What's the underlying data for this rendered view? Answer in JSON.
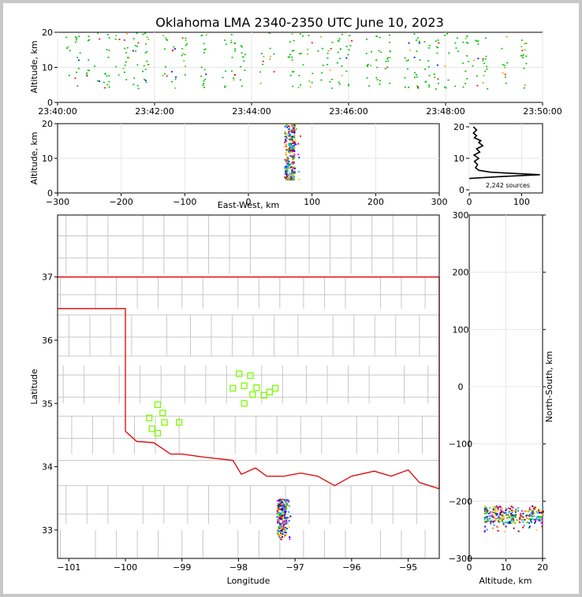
{
  "title": "Oklahoma LMA 2340-2350 UTC June 10, 2023",
  "colors": {
    "state_boundary": "#e00000",
    "county_lines": "#c8c8c8",
    "stations": "#7cfc00",
    "profile": "#000000"
  },
  "chart_data": [
    {
      "id": "time-height",
      "type": "scatter",
      "ylabel": "Altitude, km",
      "xlim": [
        "23:40:00",
        "23:50:00"
      ],
      "ylim": [
        0,
        20
      ],
      "xticks": [
        "23:40:00",
        "23:42:00",
        "23:44:00",
        "23:46:00",
        "23:48:00",
        "23:50:00"
      ],
      "yticks": [
        "0",
        "10",
        "20"
      ],
      "columns_minutes": [
        0.2,
        0.4,
        0.6,
        0.8,
        1.0,
        1.2,
        1.4,
        1.6,
        1.8,
        2.2,
        2.4,
        2.6,
        3.0,
        3.4,
        3.6,
        3.8,
        4.2,
        4.4,
        4.8,
        5.0,
        5.2,
        5.4,
        5.6,
        5.8,
        6.0,
        6.4,
        6.6,
        6.8,
        7.2,
        7.4,
        7.6,
        7.8,
        8.0,
        8.2,
        8.4,
        8.6,
        8.8,
        9.2,
        9.6
      ],
      "altitude_range_km": [
        4,
        20
      ]
    },
    {
      "id": "ew-altitude",
      "type": "heatmap",
      "xlabel": "East-West, km",
      "ylabel": "Altitude, km",
      "xlim": [
        -300,
        300
      ],
      "ylim": [
        0,
        20
      ],
      "xticks": [
        "−300",
        "−200",
        "−100",
        "0",
        "100",
        "200",
        "300"
      ],
      "yticks": [
        "0",
        "10",
        "20"
      ],
      "cluster": {
        "x_range_km": [
          55,
          80
        ],
        "altitude_range_km": [
          4,
          20
        ]
      }
    },
    {
      "id": "altitude-histogram",
      "type": "line",
      "xlim": [
        0,
        140
      ],
      "ylim": [
        0,
        20
      ],
      "xticks": [
        "0",
        "100"
      ],
      "yticks": [
        "0",
        "10",
        "20"
      ],
      "annotation": "2,242 sources",
      "profile": [
        {
          "count": 0,
          "alt": 3.6
        },
        {
          "count": 60,
          "alt": 4.2
        },
        {
          "count": 135,
          "alt": 4.8
        },
        {
          "count": 85,
          "alt": 5.2
        },
        {
          "count": 40,
          "alt": 5.6
        },
        {
          "count": 18,
          "alt": 6.2
        },
        {
          "count": 12,
          "alt": 7.0
        },
        {
          "count": 16,
          "alt": 8.0
        },
        {
          "count": 10,
          "alt": 9.0
        },
        {
          "count": 18,
          "alt": 10.0
        },
        {
          "count": 9,
          "alt": 11.0
        },
        {
          "count": 20,
          "alt": 12.0
        },
        {
          "count": 14,
          "alt": 13.0
        },
        {
          "count": 26,
          "alt": 14.0
        },
        {
          "count": 18,
          "alt": 15.0
        },
        {
          "count": 22,
          "alt": 15.6
        },
        {
          "count": 10,
          "alt": 16.5
        },
        {
          "count": 14,
          "alt": 17.2
        },
        {
          "count": 8,
          "alt": 18.0
        },
        {
          "count": 14,
          "alt": 19.0
        },
        {
          "count": 8,
          "alt": 20.0
        }
      ]
    },
    {
      "id": "plan-view",
      "type": "scatter",
      "xlabel": "Longitude",
      "ylabel": "Latitude",
      "xlim": [
        -101.2,
        -94.45
      ],
      "ylim": [
        32.55,
        37.98
      ],
      "xticks": [
        "−101",
        "−100",
        "−99",
        "−98",
        "−97",
        "−96",
        "−95"
      ],
      "yticks": [
        "33",
        "34",
        "35",
        "36",
        "37"
      ],
      "stations": [
        {
          "lon": -99.43,
          "lat": 34.98
        },
        {
          "lon": -99.34,
          "lat": 34.85
        },
        {
          "lon": -99.58,
          "lat": 34.77
        },
        {
          "lon": -99.31,
          "lat": 34.7
        },
        {
          "lon": -99.05,
          "lat": 34.7
        },
        {
          "lon": -99.53,
          "lat": 34.6
        },
        {
          "lon": -99.43,
          "lat": 34.53
        },
        {
          "lon": -97.99,
          "lat": 35.47
        },
        {
          "lon": -97.79,
          "lat": 35.44
        },
        {
          "lon": -98.1,
          "lat": 35.24
        },
        {
          "lon": -97.9,
          "lat": 35.28
        },
        {
          "lon": -97.68,
          "lat": 35.25
        },
        {
          "lon": -97.35,
          "lat": 35.24
        },
        {
          "lon": -97.45,
          "lat": 35.18
        },
        {
          "lon": -97.75,
          "lat": 35.14
        },
        {
          "lon": -97.55,
          "lat": 35.13
        },
        {
          "lon": -97.9,
          "lat": 35.0
        }
      ],
      "source_cluster": {
        "lon_range": [
          -97.33,
          -97.07
        ],
        "lat_range": [
          32.85,
          33.5
        ]
      }
    },
    {
      "id": "altitude-ns",
      "type": "heatmap",
      "xlabel": "Altitude, km",
      "ylabel": "North-South, km",
      "xlim": [
        0,
        20
      ],
      "ylim": [
        -300,
        300
      ],
      "xticks": [
        "0",
        "10",
        "20"
      ],
      "yticks": [
        "−300",
        "−200",
        "−100",
        "0",
        "100",
        "200",
        "300"
      ],
      "cluster": {
        "altitude_range_km": [
          4,
          20
        ],
        "ns_range_km": [
          -255,
          -200
        ]
      }
    }
  ]
}
